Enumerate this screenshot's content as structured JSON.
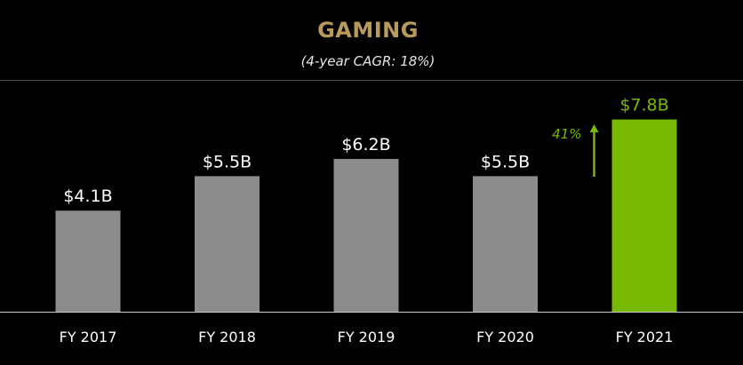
{
  "chart_data": {
    "type": "bar",
    "title": "GAMING",
    "subtitle": "(4-year CAGR: 18%)",
    "categories": [
      "FY 2017",
      "FY 2018",
      "FY 2019",
      "FY 2020",
      "FY 2021"
    ],
    "values": [
      4.1,
      5.5,
      6.2,
      5.5,
      7.8
    ],
    "value_labels": [
      "$4.1B",
      "$5.5B",
      "$6.2B",
      "$5.5B",
      "$7.8B"
    ],
    "units": "$B",
    "ylim": [
      0,
      8.9
    ],
    "grid": false,
    "legend": "none",
    "annotation": {
      "text": "41%",
      "target_category": "FY 2021",
      "arrow": "up"
    },
    "colors": {
      "bar": "#8c8c8c",
      "highlight_bar": "#76b900",
      "highlight_label": "#76b900",
      "label": "#ffffff",
      "title": "#b89a5a",
      "axis": "#cccccc"
    },
    "highlight_index": 4
  }
}
